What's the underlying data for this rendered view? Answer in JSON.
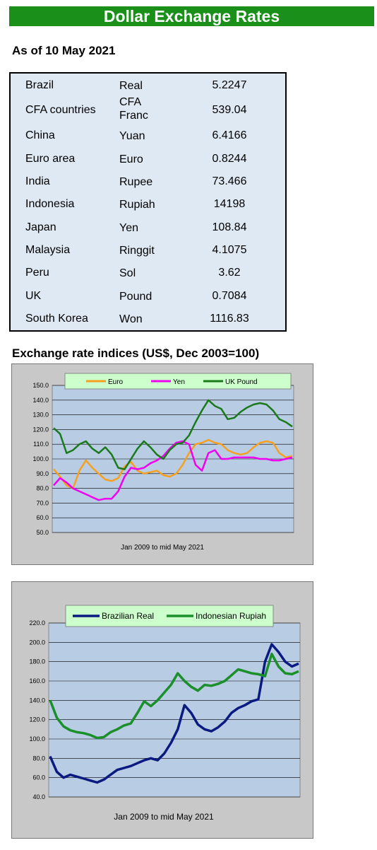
{
  "header": {
    "title": "Dollar Exchange Rates",
    "as_of": "As of 10 May 2021"
  },
  "rates": [
    {
      "country": "Brazil",
      "currency": "Real",
      "value": "5.2247"
    },
    {
      "country": "CFA countries",
      "currency": "CFA Franc",
      "value": "539.04"
    },
    {
      "country": "China",
      "currency": "Yuan",
      "value": "6.4166"
    },
    {
      "country": "Euro area",
      "currency": "Euro",
      "value": "0.8244"
    },
    {
      "country": "India",
      "currency": "Rupee",
      "value": "73.466"
    },
    {
      "country": "Indonesia",
      "currency": "Rupiah",
      "value": "14198"
    },
    {
      "country": "Japan",
      "currency": "Yen",
      "value": "108.84"
    },
    {
      "country": "Malaysia",
      "currency": "Ringgit",
      "value": "4.1075"
    },
    {
      "country": "Peru",
      "currency": "Sol",
      "value": "3.62"
    },
    {
      "country": "UK",
      "currency": "Pound",
      "value": "0.7084"
    },
    {
      "country": "South Korea",
      "currency": "Won",
      "value": "1116.83"
    }
  ],
  "section_title": "Exchange rate indices (US$, Dec 2003=100)",
  "chart_data": [
    {
      "type": "line",
      "xlabel": "Jan 2009  to mid May 2021",
      "ylim": [
        50,
        150
      ],
      "yticks": [
        "150.0",
        "140.0",
        "130.0",
        "120.0",
        "110.0",
        "100.0",
        "90.0",
        "80.0",
        "70.0",
        "60.0",
        "50.0"
      ],
      "grid": true,
      "legend_position": "top",
      "series": [
        {
          "name": "Euro",
          "color": "#f5a020",
          "values": [
            93,
            88,
            82,
            80,
            92,
            99,
            94,
            90,
            86,
            85,
            87,
            95,
            98,
            92,
            90,
            91,
            92,
            89,
            88,
            90,
            96,
            104,
            110,
            111,
            113,
            111,
            110,
            106,
            104,
            103,
            104,
            108,
            111,
            112,
            111,
            104,
            101,
            102
          ]
        },
        {
          "name": "Yen",
          "color": "#f000f0",
          "values": [
            82,
            87,
            84,
            80,
            78,
            76,
            74,
            72,
            73,
            73,
            78,
            88,
            94,
            93,
            94,
            97,
            99,
            102,
            107,
            111,
            112,
            110,
            96,
            92,
            104,
            106,
            100,
            100,
            101,
            101,
            101,
            101,
            100,
            100,
            99,
            99,
            100,
            101
          ]
        },
        {
          "name": "UK Pound",
          "color": "#1a7a1a",
          "values": [
            121,
            117,
            104,
            106,
            110,
            112,
            107,
            104,
            108,
            103,
            94,
            93,
            100,
            107,
            112,
            108,
            103,
            100,
            106,
            110,
            111,
            116,
            125,
            133,
            140,
            136,
            134,
            127,
            128,
            132,
            135,
            137,
            138,
            137,
            133,
            127,
            125,
            122
          ]
        }
      ]
    },
    {
      "type": "line",
      "xlabel": "Jan 2009  to mid May 2021",
      "ylim": [
        40,
        220
      ],
      "yticks": [
        "220.0",
        "200.0",
        "180.0",
        "160.0",
        "140.0",
        "120.0",
        "100.0",
        "80.0",
        "60.0",
        "40.0"
      ],
      "grid": true,
      "legend_position": "top",
      "series": [
        {
          "name": "Brazilian Real",
          "color": "#0a1a80",
          "values": [
            82,
            66,
            60,
            63,
            61,
            59,
            57,
            55,
            58,
            63,
            68,
            70,
            72,
            75,
            78,
            80,
            78,
            85,
            96,
            110,
            135,
            127,
            115,
            110,
            108,
            112,
            118,
            127,
            132,
            135,
            139,
            141,
            180,
            198,
            190,
            180,
            175,
            178
          ]
        },
        {
          "name": "Indonesian Rupiah",
          "color": "#1a8f2a",
          "values": [
            140,
            122,
            113,
            109,
            107,
            106,
            104,
            101,
            102,
            107,
            110,
            114,
            116,
            127,
            139,
            134,
            140,
            148,
            156,
            168,
            160,
            154,
            150,
            156,
            155,
            157,
            160,
            166,
            172,
            170,
            168,
            167,
            165,
            188,
            175,
            168,
            167,
            170
          ]
        }
      ]
    }
  ]
}
